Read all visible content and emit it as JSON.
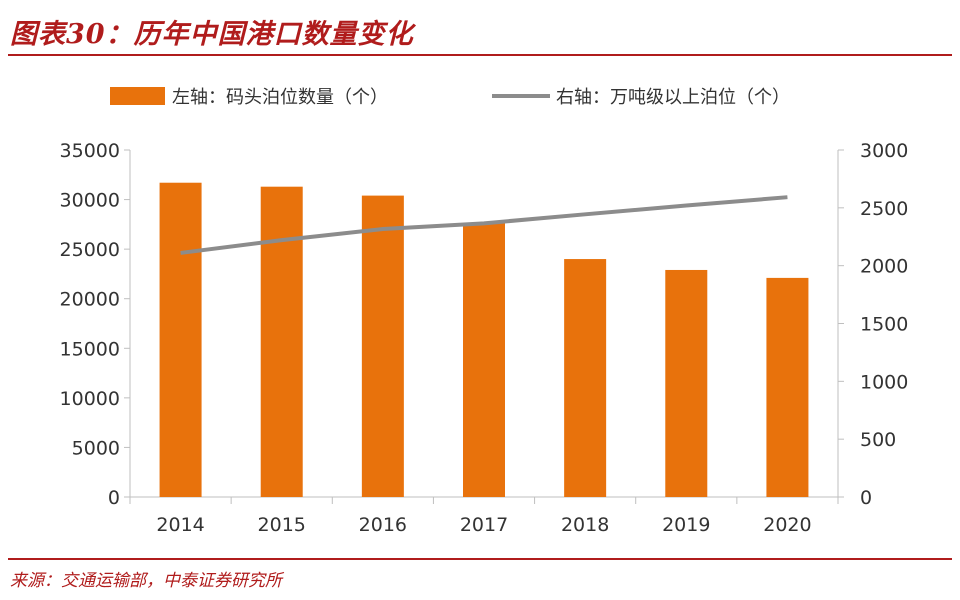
{
  "header": {
    "title": "图表30：历年中国港口数量变化"
  },
  "footer": {
    "source": "来源：交通运输部，中泰证券研究所"
  },
  "colors": {
    "accent": "#b01c1c",
    "bar": "#e8720c",
    "line": "#8c8c8c",
    "axis": "#bfbfbf"
  },
  "chart_data": {
    "type": "bar",
    "categories": [
      "2014",
      "2015",
      "2016",
      "2017",
      "2018",
      "2019",
      "2020"
    ],
    "series": [
      {
        "name": "左轴：码头泊位数量（个）",
        "type": "bar",
        "axis": "left",
        "values": [
          31700,
          31300,
          30400,
          27600,
          24000,
          22900,
          22100
        ]
      },
      {
        "name": "右轴：万吨级以上泊位（个）",
        "type": "line",
        "axis": "right",
        "values": [
          2110,
          2221,
          2317,
          2366,
          2444,
          2520,
          2592
        ]
      }
    ],
    "left_axis": {
      "ylim": [
        0,
        35000
      ],
      "ticks": [
        "0",
        "5000",
        "10000",
        "15000",
        "20000",
        "25000",
        "30000",
        "35000"
      ]
    },
    "right_axis": {
      "ylim": [
        0,
        3000
      ],
      "ticks": [
        "0",
        "500",
        "1000",
        "1500",
        "2000",
        "2500",
        "3000"
      ]
    },
    "legend_position": "top",
    "grid": false
  }
}
